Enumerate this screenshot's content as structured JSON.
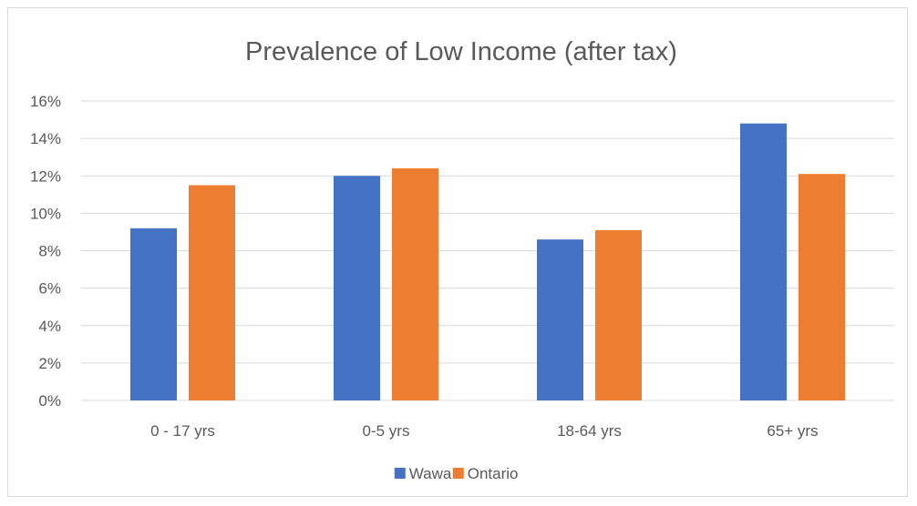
{
  "chart_data": {
    "type": "bar",
    "title": "Prevalence of Low Income (after tax)",
    "categories": [
      "0 - 17 yrs",
      "0-5 yrs",
      "18-64 yrs",
      "65+ yrs"
    ],
    "series": [
      {
        "name": "Wawa",
        "values": [
          9.2,
          12.0,
          8.6,
          14.8
        ],
        "color": "#4472c4"
      },
      {
        "name": "Ontario",
        "values": [
          11.5,
          12.4,
          9.1,
          12.1
        ],
        "color": "#ed7d31"
      }
    ],
    "y_ticks": [
      "0%",
      "2%",
      "4%",
      "6%",
      "8%",
      "10%",
      "12%",
      "14%",
      "16%"
    ],
    "y_tick_values": [
      0,
      2,
      4,
      6,
      8,
      10,
      12,
      14,
      16
    ],
    "ylim": [
      0,
      16
    ],
    "grid": true,
    "legend_position": "bottom",
    "gridline_color": "#d9d9d9",
    "text_color": "#595959"
  }
}
